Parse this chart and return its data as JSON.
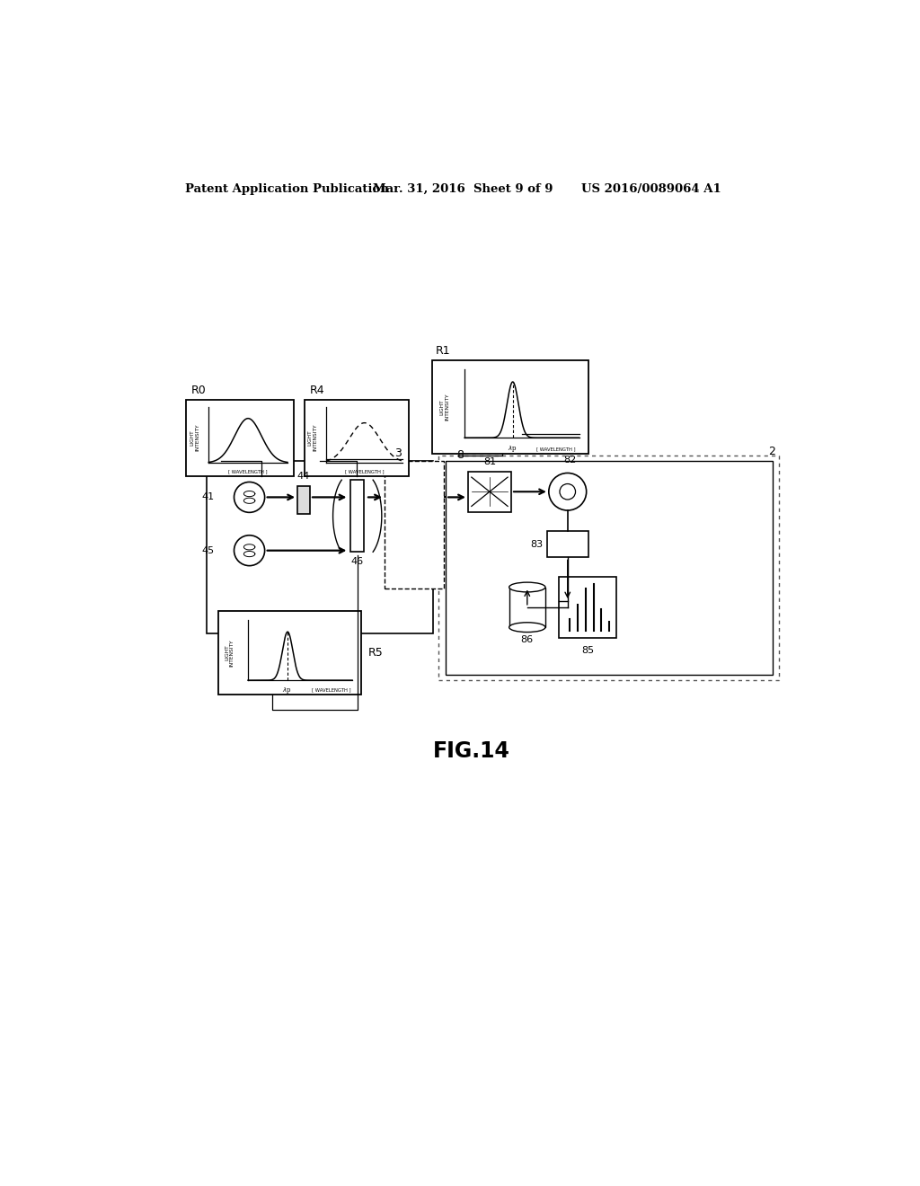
{
  "bg_color": "#ffffff",
  "header_left": "Patent Application Publication",
  "header_mid": "Mar. 31, 2016  Sheet 9 of 9",
  "header_right": "US 2016/0089064 A1",
  "figure_label": "FIG.14"
}
